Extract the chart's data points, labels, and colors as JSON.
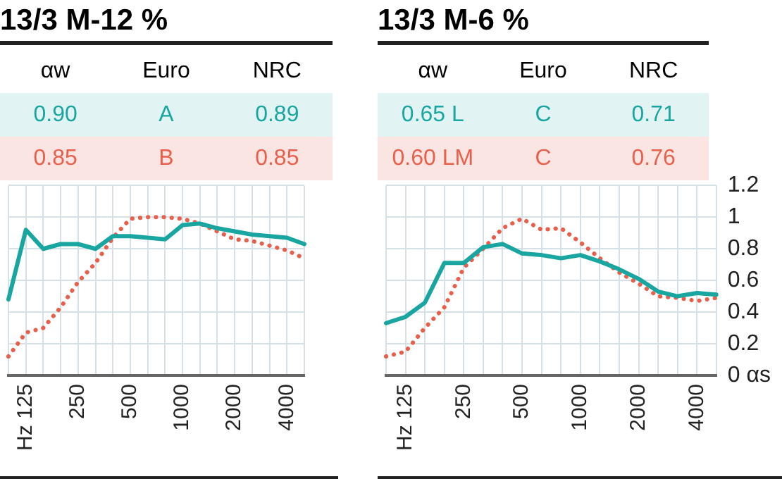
{
  "chart_data": [
    {
      "type": "line",
      "title": "13/3 M-12 %",
      "annotations": [
        "αw",
        "Euro",
        "NRC",
        "0.90",
        "A",
        "0.89",
        "0.85",
        "B",
        "0.85"
      ],
      "categories": [
        null,
        "Hz 125",
        null,
        null,
        "250",
        null,
        null,
        "500",
        null,
        null,
        "1000",
        null,
        null,
        "2000",
        null,
        null,
        "4000",
        null
      ],
      "series": [
        {
          "color": "#1aa6a0",
          "line_style": "solid",
          "values": [
            0.48,
            0.92,
            0.8,
            0.83,
            0.83,
            0.8,
            0.88,
            0.88,
            0.87,
            0.86,
            0.95,
            0.96,
            0.93,
            0.91,
            0.89,
            0.88,
            0.87,
            0.83
          ]
        },
        {
          "color": "#e8604c",
          "line_style": "dotted",
          "values": [
            0.12,
            0.27,
            0.3,
            0.43,
            0.59,
            0.71,
            0.87,
            0.99,
            1.0,
            1.0,
            0.99,
            0.96,
            0.91,
            0.86,
            0.85,
            0.82,
            0.79,
            0.74
          ]
        }
      ],
      "ylim": [
        0,
        1.2
      ],
      "yticks": [
        0,
        0.2,
        0.4,
        0.6,
        0.8,
        1,
        1.2
      ],
      "grid": true,
      "legend": false,
      "marker": "none",
      "tick_labels": "x"
    },
    {
      "type": "line",
      "title": "13/3 M-6 %",
      "annotations": [
        "αw",
        "Euro",
        "NRC",
        "0.65 L",
        "C",
        "0.71",
        "0.60 LM",
        "C",
        "0.76"
      ],
      "categories": [
        null,
        "Hz 125",
        null,
        null,
        "250",
        null,
        null,
        "500",
        null,
        null,
        "1000",
        null,
        null,
        "2000",
        null,
        null,
        "4000",
        null
      ],
      "series": [
        {
          "color": "#1aa6a0",
          "line_style": "solid",
          "values": [
            0.33,
            0.37,
            0.46,
            0.71,
            0.71,
            0.81,
            0.83,
            0.77,
            0.76,
            0.74,
            0.76,
            0.72,
            0.67,
            0.61,
            0.53,
            0.5,
            0.52,
            0.51
          ]
        },
        {
          "color": "#e8604c",
          "line_style": "dotted",
          "values": [
            0.12,
            0.15,
            0.3,
            0.43,
            0.68,
            0.8,
            0.93,
            0.99,
            0.92,
            0.93,
            0.84,
            0.74,
            0.65,
            0.58,
            0.5,
            0.49,
            0.47,
            0.49
          ]
        }
      ],
      "ylim": [
        0,
        1.2
      ],
      "yticks": [
        {
          "value": 0,
          "label": "0 αs"
        },
        {
          "value": 0.2,
          "label": "0.2"
        },
        {
          "value": 0.4,
          "label": "0.4"
        },
        {
          "value": 0.6,
          "label": "0.6"
        },
        {
          "value": 0.8,
          "label": "0.8"
        },
        {
          "value": 1,
          "label": "1"
        },
        {
          "value": 1.2,
          "label": "1.2"
        }
      ],
      "grid": true,
      "legend": false,
      "marker": "none"
    }
  ]
}
